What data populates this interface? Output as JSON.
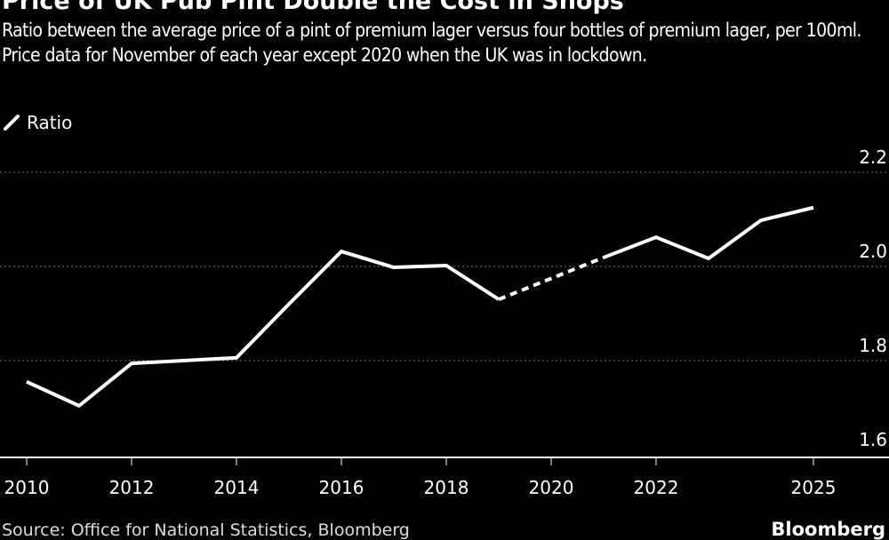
{
  "chart_data": {
    "type": "line",
    "title": "Price of UK Pub Pint Double the Cost in Shops",
    "subtitle": "Ratio between the average price of a pint of premium lager versus four bottles of premium lager, per 100ml. Price data for November of each year except 2020 when the UK was in lockdown.",
    "legend": [
      {
        "name": "Ratio",
        "color": "#ffffff"
      }
    ],
    "legend_placement": "top-left",
    "x": [
      2010,
      2011,
      2012,
      2013,
      2014,
      2015,
      2016,
      2017,
      2018,
      2019,
      2021,
      2022,
      2023,
      2024,
      2025
    ],
    "series": [
      {
        "name": "Ratio",
        "values": [
          1.755,
          1.704,
          1.794,
          1.8,
          1.806,
          1.92,
          2.032,
          1.998,
          2.002,
          1.93,
          2.019,
          2.062,
          2.017,
          2.098,
          2.125
        ]
      }
    ],
    "dashed_gap": [
      2019,
      2021
    ],
    "xticks": [
      "2010",
      "2012",
      "2014",
      "2016",
      "2018",
      "2020",
      "2022",
      "2025"
    ],
    "xtick_values": [
      2010,
      2012,
      2014,
      2016,
      2018,
      2020,
      2022,
      2025
    ],
    "yticks": [
      "1.6",
      "1.8",
      "2.0",
      "2.2"
    ],
    "ytick_values": [
      1.6,
      1.8,
      2.0,
      2.2
    ],
    "xlim": [
      2009.5,
      2026.3
    ],
    "ylim": [
      1.6,
      2.2
    ],
    "grid": true,
    "xlabel": "",
    "ylabel": ""
  },
  "footer": {
    "source": "Source: Office for National Statistics, Bloomberg",
    "logo": "Bloomberg"
  }
}
